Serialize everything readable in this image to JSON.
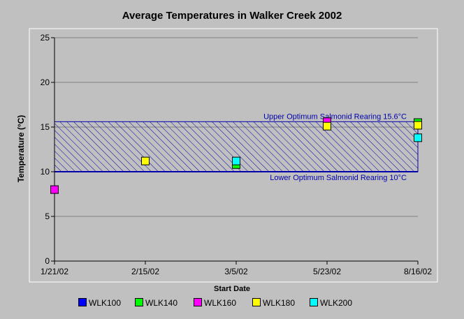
{
  "chart_data": {
    "type": "scatter",
    "title": "Average Temperatures in Walker Creek 2002",
    "xlabel": "Start Date",
    "ylabel": "Temperature (°C)",
    "ylim": [
      0,
      25
    ],
    "yticks": [
      "0",
      "5",
      "10",
      "15",
      "20",
      "25"
    ],
    "categories": [
      "1/21/02",
      "2/15/02",
      "3/5/02",
      "5/23/02",
      "8/16/02"
    ],
    "grid": "horizontal",
    "band": {
      "upper": 15.6,
      "lower": 10,
      "upper_label": "Upper Optimum Salmonid Rearing 15.6°C",
      "lower_label": "Lower Optimum Salmonid Rearing 10°C",
      "color": "#0000aa"
    },
    "series": [
      {
        "name": "WLK100",
        "color": "#0000ff",
        "values": [
          null,
          null,
          null,
          null,
          null
        ]
      },
      {
        "name": "WLK140",
        "color": "#00ff00",
        "values": [
          null,
          null,
          10.8,
          null,
          15.5
        ]
      },
      {
        "name": "WLK160",
        "color": "#ff00ff",
        "values": [
          8.0,
          null,
          null,
          15.6,
          null
        ]
      },
      {
        "name": "WLK180",
        "color": "#ffff00",
        "values": [
          null,
          11.2,
          null,
          15.1,
          15.2
        ]
      },
      {
        "name": "WLK200",
        "color": "#00ffff",
        "values": [
          null,
          null,
          11.2,
          null,
          13.8
        ]
      }
    ]
  }
}
